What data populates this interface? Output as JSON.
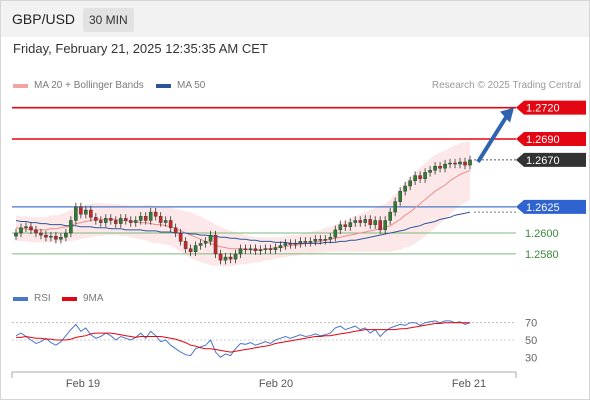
{
  "header": {
    "symbol": "GBP/USD",
    "timeframe": "30 MIN"
  },
  "timestamp": "Friday, February 21, 2025 12:35:35 AM CET",
  "legend": {
    "ma20_label": "MA 20 + Bollinger Bands",
    "ma50_label": "MA 50",
    "rsi_label": "RSI",
    "rsi_ma_label": "9MA"
  },
  "credit": "Research © 2025 Trading Central",
  "colors": {
    "resistance": "#e30613",
    "pivot": "#4a78c9",
    "support": "#4a9a4a",
    "current_tag": "#333333",
    "ma20": "#f18b8b",
    "ma50": "#2f5597",
    "rsi": "#4a78c9",
    "rsi_ma": "#e30613",
    "candle_up": "#2e7d32",
    "candle_down": "#c62828",
    "arrow": "#2e63b0"
  },
  "chart_data": [
    {
      "type": "candlestick",
      "x_tick_labels": [
        "Feb 19",
        "Feb 20",
        "Feb 21"
      ],
      "ylim": [
        1.2555,
        1.2735
      ],
      "levels": [
        {
          "value": 1.272,
          "label": "1.2720",
          "kind": "resistance"
        },
        {
          "value": 1.269,
          "label": "1.2690",
          "kind": "resistance"
        },
        {
          "value": 1.267,
          "label": "1.2670",
          "kind": "current"
        },
        {
          "value": 1.2625,
          "label": "1.2625",
          "kind": "pivot"
        },
        {
          "value": 1.26,
          "label": "1.2600",
          "kind": "support"
        },
        {
          "value": 1.258,
          "label": "1.2580",
          "kind": "support"
        }
      ],
      "arrow": {
        "from_value": 1.267,
        "to_value": 1.272,
        "direction": "up"
      },
      "close_series": [
        1.26,
        1.2605,
        1.2606,
        1.2603,
        1.26,
        1.2598,
        1.2596,
        1.2597,
        1.2594,
        1.2596,
        1.26,
        1.2612,
        1.2625,
        1.2618,
        1.2622,
        1.2615,
        1.2612,
        1.261,
        1.2614,
        1.2612,
        1.2609,
        1.2614,
        1.2612,
        1.261,
        1.2612,
        1.2616,
        1.2612,
        1.262,
        1.2616,
        1.261,
        1.2612,
        1.2605,
        1.26,
        1.2592,
        1.2585,
        1.2582,
        1.2588,
        1.259,
        1.2592,
        1.2598,
        1.258,
        1.2574,
        1.2577,
        1.2575,
        1.258,
        1.2585,
        1.2584,
        1.2585,
        1.2583,
        1.2584,
        1.2585,
        1.2584,
        1.2586,
        1.2588,
        1.259,
        1.2589,
        1.259,
        1.2592,
        1.2591,
        1.2592,
        1.2594,
        1.2593,
        1.2594,
        1.2596,
        1.2603,
        1.2608,
        1.2606,
        1.261,
        1.2612,
        1.261,
        1.2613,
        1.2608,
        1.2612,
        1.2603,
        1.2612,
        1.262,
        1.263,
        1.264,
        1.2645,
        1.265,
        1.2655,
        1.2652,
        1.2658,
        1.266,
        1.2664,
        1.2662,
        1.2666,
        1.2667,
        1.2666,
        1.2668,
        1.2665,
        1.267
      ],
      "ma20_series": [
        1.2605,
        1.2604,
        1.2604,
        1.2603,
        1.2603,
        1.2603,
        1.2603,
        1.2604,
        1.2604,
        1.2605,
        1.2606,
        1.2607,
        1.2609,
        1.261,
        1.2611,
        1.2612,
        1.2613,
        1.2613,
        1.2613,
        1.2613,
        1.2613,
        1.2612,
        1.2612,
        1.2611,
        1.2611,
        1.261,
        1.261,
        1.2609,
        1.2608,
        1.2608,
        1.2607,
        1.2606,
        1.2604,
        1.2602,
        1.26,
        1.2598,
        1.2596,
        1.2594,
        1.2592,
        1.259,
        1.2588,
        1.2587,
        1.2586,
        1.2585,
        1.2585,
        1.2585,
        1.2584,
        1.2584,
        1.2584,
        1.2584,
        1.2585,
        1.2585,
        1.2586,
        1.2586,
        1.2587,
        1.2588,
        1.2588,
        1.2589,
        1.259,
        1.259,
        1.2591,
        1.2592,
        1.2593,
        1.2594,
        1.2595,
        1.2596,
        1.2597,
        1.2598,
        1.2599,
        1.26,
        1.2601,
        1.2602,
        1.2603,
        1.2604,
        1.2605,
        1.2607,
        1.261,
        1.2613,
        1.2617,
        1.262,
        1.2624,
        1.2628,
        1.2632,
        1.2636,
        1.264,
        1.2643,
        1.2646,
        1.265,
        1.2653,
        1.2656,
        1.2658,
        1.266
      ],
      "ma50_series": [
        1.2612,
        1.2611,
        1.2611,
        1.261,
        1.261,
        1.2609,
        1.2609,
        1.2608,
        1.2608,
        1.2608,
        1.2607,
        1.2607,
        1.2607,
        1.2606,
        1.2606,
        1.2606,
        1.2605,
        1.2605,
        1.2605,
        1.2604,
        1.2604,
        1.2604,
        1.2603,
        1.2603,
        1.2603,
        1.2603,
        1.2602,
        1.2602,
        1.2602,
        1.2601,
        1.2601,
        1.2601,
        1.26,
        1.26,
        1.26,
        1.2599,
        1.2599,
        1.2598,
        1.2598,
        1.2597,
        1.2597,
        1.2596,
        1.2596,
        1.2595,
        1.2595,
        1.2594,
        1.2594,
        1.2593,
        1.2593,
        1.2592,
        1.2592,
        1.2592,
        1.2591,
        1.2591,
        1.2591,
        1.259,
        1.259,
        1.259,
        1.259,
        1.259,
        1.259,
        1.259,
        1.2591,
        1.2591,
        1.2591,
        1.2592,
        1.2592,
        1.2593,
        1.2593,
        1.2594,
        1.2595,
        1.2596,
        1.2597,
        1.2598,
        1.2599,
        1.26,
        1.2601,
        1.2602,
        1.2603,
        1.2605,
        1.2606,
        1.2607,
        1.2609,
        1.261,
        1.2611,
        1.2613,
        1.2614,
        1.2615,
        1.2617,
        1.2618,
        1.2619,
        1.262
      ],
      "bollinger_halfwidth": [
        0.0012,
        0.0012,
        0.0012,
        0.0012,
        0.0012,
        0.0012,
        0.0012,
        0.0013,
        0.0013,
        0.0013,
        0.0014,
        0.0015,
        0.0016,
        0.0016,
        0.0016,
        0.0016,
        0.0016,
        0.0016,
        0.0015,
        0.0015,
        0.0015,
        0.0015,
        0.0015,
        0.0015,
        0.0016,
        0.0016,
        0.0017,
        0.0018,
        0.0018,
        0.0018,
        0.0018,
        0.0018,
        0.0019,
        0.002,
        0.0021,
        0.0022,
        0.0022,
        0.0022,
        0.0021,
        0.0021,
        0.002,
        0.0019,
        0.0018,
        0.0017,
        0.0016,
        0.0015,
        0.0014,
        0.0013,
        0.0012,
        0.0012,
        0.0011,
        0.0011,
        0.001,
        0.001,
        0.001,
        0.001,
        0.001,
        0.001,
        0.001,
        0.0011,
        0.0011,
        0.0011,
        0.0012,
        0.0012,
        0.0013,
        0.0014,
        0.0015,
        0.0016,
        0.0017,
        0.0018,
        0.0019,
        0.002,
        0.0021,
        0.0022,
        0.0023,
        0.0025,
        0.0027,
        0.0029,
        0.0031,
        0.0033,
        0.0034,
        0.0035,
        0.0035,
        0.0035,
        0.0035,
        0.0034,
        0.0033,
        0.0032,
        0.0031,
        0.003,
        0.0029,
        0.0028
      ]
    },
    {
      "type": "line",
      "name": "RSI",
      "x_tick_labels": [
        "Feb 19",
        "Feb 20",
        "Feb 21"
      ],
      "y_ticks": [
        70,
        50,
        30
      ],
      "ylim": [
        20,
        80
      ],
      "series": [
        {
          "name": "RSI",
          "values": [
            55,
            58,
            54,
            50,
            46,
            48,
            52,
            47,
            44,
            48,
            55,
            62,
            68,
            60,
            64,
            56,
            52,
            54,
            58,
            55,
            50,
            54,
            52,
            50,
            53,
            58,
            52,
            60,
            55,
            48,
            50,
            44,
            40,
            36,
            33,
            32,
            40,
            42,
            44,
            50,
            36,
            30,
            34,
            32,
            40,
            46,
            45,
            47,
            44,
            46,
            48,
            46,
            50,
            52,
            54,
            52,
            54,
            56,
            54,
            55,
            57,
            55,
            56,
            58,
            64,
            66,
            62,
            64,
            66,
            62,
            64,
            58,
            62,
            54,
            60,
            64,
            66,
            68,
            67,
            70,
            70,
            67,
            70,
            71,
            72,
            70,
            72,
            72,
            70,
            71,
            68,
            70
          ]
        },
        {
          "name": "9MA",
          "values": [
            53,
            53,
            54,
            53,
            52,
            52,
            51,
            51,
            50,
            50,
            50,
            51,
            53,
            54,
            55,
            57,
            58,
            58,
            58,
            58,
            57,
            56,
            55,
            54,
            53,
            54,
            54,
            54,
            54,
            54,
            53,
            52,
            51,
            49,
            47,
            44,
            43,
            41,
            40,
            40,
            39,
            38,
            37,
            36,
            37,
            38,
            39,
            40,
            41,
            42,
            43,
            44,
            46,
            47,
            48,
            49,
            50,
            51,
            52,
            53,
            54,
            54,
            55,
            55,
            56,
            57,
            58,
            59,
            60,
            61,
            62,
            62,
            62,
            62,
            62,
            62,
            62,
            63,
            63,
            64,
            65,
            66,
            67,
            68,
            69,
            69,
            70,
            70,
            70,
            70,
            70,
            70
          ]
        }
      ]
    }
  ]
}
